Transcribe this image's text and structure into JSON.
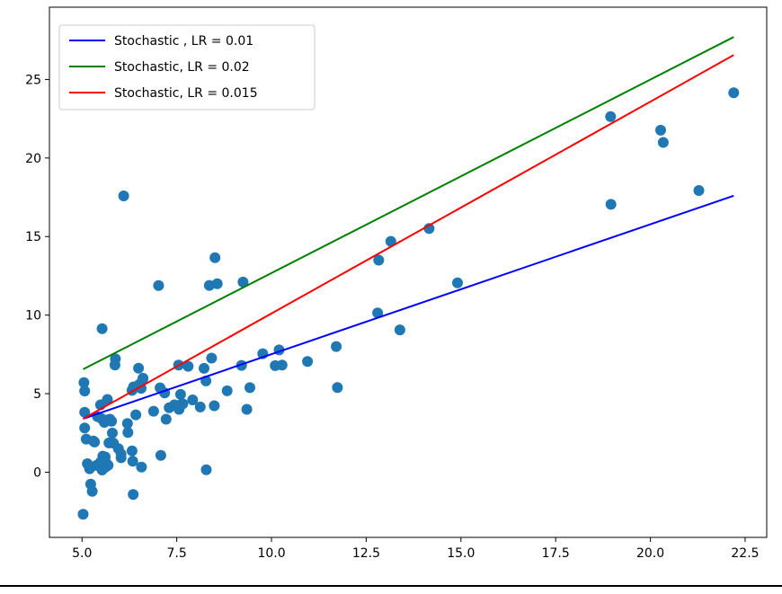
{
  "chart_data": {
    "type": "scatter",
    "title": "",
    "xlabel": "",
    "ylabel": "",
    "xlim": [
      4.14,
      23.07
    ],
    "ylim": [
      -4.15,
      29.6
    ],
    "grid": false,
    "legend_position": "top-left",
    "x_ticks": [
      {
        "value": 5.0,
        "label": "5.0"
      },
      {
        "value": 7.5,
        "label": "7.5"
      },
      {
        "value": 10.0,
        "label": "10.0"
      },
      {
        "value": 12.5,
        "label": "12.5"
      },
      {
        "value": 15.0,
        "label": "15.0"
      },
      {
        "value": 17.5,
        "label": "17.5"
      },
      {
        "value": 20.0,
        "label": "20.0"
      },
      {
        "value": 22.5,
        "label": "22.5"
      }
    ],
    "y_ticks": [
      {
        "value": 0,
        "label": "0"
      },
      {
        "value": 5,
        "label": "5"
      },
      {
        "value": 10,
        "label": "10"
      },
      {
        "value": 15,
        "label": "15"
      },
      {
        "value": 20,
        "label": "20"
      },
      {
        "value": 25,
        "label": "25"
      }
    ],
    "scatter": {
      "color": "#1f77b4",
      "points": [
        [
          5.03,
          -2.68
        ],
        [
          5.05,
          5.7
        ],
        [
          5.07,
          5.17
        ],
        [
          5.07,
          3.82
        ],
        [
          5.07,
          2.82
        ],
        [
          5.11,
          2.11
        ],
        [
          5.14,
          0.54
        ],
        [
          5.2,
          0.22
        ],
        [
          5.23,
          -0.76
        ],
        [
          5.27,
          -1.22
        ],
        [
          5.3,
          1.99
        ],
        [
          5.33,
          1.92
        ],
        [
          5.38,
          0.43
        ],
        [
          5.41,
          3.54
        ],
        [
          5.49,
          4.29
        ],
        [
          5.49,
          0.64
        ],
        [
          5.52,
          3.4
        ],
        [
          5.53,
          0.14
        ],
        [
          5.53,
          9.13
        ],
        [
          5.55,
          1.02
        ],
        [
          5.59,
          3.17
        ],
        [
          5.61,
          0.97
        ],
        [
          5.62,
          0.33
        ],
        [
          5.64,
          0.57
        ],
        [
          5.66,
          3.32
        ],
        [
          5.67,
          4.63
        ],
        [
          5.69,
          0.44
        ],
        [
          5.71,
          1.86
        ],
        [
          5.74,
          3.37
        ],
        [
          5.78,
          3.24
        ],
        [
          5.8,
          2.49
        ],
        [
          5.83,
          1.85
        ],
        [
          5.87,
          6.83
        ],
        [
          5.88,
          7.21
        ],
        [
          5.96,
          1.5
        ],
        [
          6.03,
          0.92
        ],
        [
          6.03,
          1.15
        ],
        [
          6.1,
          17.59
        ],
        [
          6.2,
          3.1
        ],
        [
          6.21,
          2.53
        ],
        [
          6.32,
          1.36
        ],
        [
          6.32,
          5.21
        ],
        [
          6.34,
          0.7
        ],
        [
          6.35,
          -1.42
        ],
        [
          6.36,
          5.43
        ],
        [
          6.42,
          3.65
        ],
        [
          6.49,
          6.62
        ],
        [
          6.51,
          5.58
        ],
        [
          6.56,
          5.34
        ],
        [
          6.57,
          0.33
        ],
        [
          6.6,
          5.9
        ],
        [
          6.61,
          5.98
        ],
        [
          6.89,
          3.88
        ],
        [
          7.02,
          11.88
        ],
        [
          7.06,
          5.37
        ],
        [
          7.08,
          1.07
        ],
        [
          7.18,
          5.05
        ],
        [
          7.22,
          3.37
        ],
        [
          7.3,
          4.1
        ],
        [
          7.44,
          4.29
        ],
        [
          7.55,
          6.82
        ],
        [
          7.56,
          4.0
        ],
        [
          7.6,
          4.95
        ],
        [
          7.61,
          4.3
        ],
        [
          7.66,
          4.35
        ],
        [
          7.8,
          6.74
        ],
        [
          7.92,
          4.6
        ],
        [
          8.12,
          4.15
        ],
        [
          8.22,
          6.61
        ],
        [
          8.27,
          5.81
        ],
        [
          8.28,
          0.15
        ],
        [
          8.36,
          11.89
        ],
        [
          8.42,
          7.26
        ],
        [
          8.49,
          4.23
        ],
        [
          8.51,
          13.66
        ],
        [
          8.57,
          12.0
        ],
        [
          8.83,
          5.18
        ],
        [
          9.21,
          6.8
        ],
        [
          9.25,
          12.1
        ],
        [
          9.35,
          4.0
        ],
        [
          9.43,
          5.38
        ],
        [
          9.77,
          7.54
        ],
        [
          10.1,
          6.78
        ],
        [
          10.2,
          7.78
        ],
        [
          10.28,
          6.82
        ],
        [
          10.95,
          7.05
        ],
        [
          11.71,
          8.0
        ],
        [
          11.74,
          5.39
        ],
        [
          12.8,
          10.14
        ],
        [
          12.83,
          13.5
        ],
        [
          13.15,
          14.69
        ],
        [
          13.39,
          9.06
        ],
        [
          14.16,
          15.51
        ],
        [
          14.91,
          12.05
        ],
        [
          18.95,
          22.64
        ],
        [
          18.96,
          17.05
        ],
        [
          20.27,
          21.77
        ],
        [
          20.34,
          20.99
        ],
        [
          21.28,
          17.93
        ],
        [
          22.2,
          24.15
        ]
      ]
    },
    "series": [
      {
        "name": "Stochastic , LR = 0.01",
        "color": "#0000ff",
        "x": [
          5.03,
          22.2
        ],
        "y": [
          3.4,
          17.6
        ]
      },
      {
        "name": "Stochastic, LR = 0.02",
        "color": "#008000",
        "x": [
          5.03,
          22.2
        ],
        "y": [
          6.55,
          27.7
        ]
      },
      {
        "name": "Stochastic, LR = 0.015",
        "color": "#ff0000",
        "x": [
          5.03,
          22.2
        ],
        "y": [
          3.4,
          26.55
        ]
      }
    ]
  }
}
